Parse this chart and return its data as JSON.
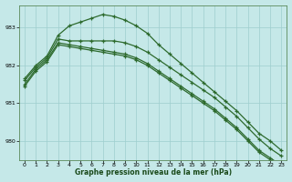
{
  "xlabel": "Graphe pression niveau de la mer (hPa)",
  "background_color": "#c5e8e8",
  "grid_color": "#9ecece",
  "line_color": "#2d6a2d",
  "ylim": [
    979.5,
    983.6
  ],
  "yticks": [
    980,
    981,
    982,
    983
  ],
  "xlim": [
    -0.5,
    23.5
  ],
  "xticks": [
    0,
    1,
    2,
    3,
    4,
    5,
    6,
    7,
    8,
    9,
    10,
    11,
    12,
    13,
    14,
    15,
    16,
    17,
    18,
    19,
    20,
    21,
    22,
    23
  ],
  "series": [
    [
      981.65,
      982.0,
      982.25,
      982.8,
      983.05,
      983.15,
      983.25,
      983.35,
      983.3,
      983.2,
      983.05,
      982.85,
      982.55,
      982.3,
      982.05,
      981.8,
      981.55,
      981.3,
      981.05,
      980.8,
      980.5,
      980.2,
      980.0,
      979.75
    ],
    [
      981.6,
      981.95,
      982.2,
      982.7,
      982.65,
      982.65,
      982.65,
      982.65,
      982.65,
      982.6,
      982.5,
      982.35,
      982.15,
      981.95,
      981.75,
      981.55,
      981.35,
      981.15,
      980.9,
      980.65,
      980.35,
      980.05,
      979.8,
      979.6
    ],
    [
      981.5,
      981.9,
      982.15,
      982.6,
      982.55,
      982.5,
      982.45,
      982.4,
      982.35,
      982.3,
      982.2,
      982.05,
      981.85,
      981.65,
      981.45,
      981.25,
      981.05,
      980.85,
      980.6,
      980.35,
      980.05,
      979.75,
      979.55,
      979.35
    ],
    [
      981.45,
      981.85,
      982.1,
      982.55,
      982.5,
      982.45,
      982.4,
      982.35,
      982.3,
      982.25,
      982.15,
      982.0,
      981.8,
      981.6,
      981.4,
      981.2,
      981.0,
      980.8,
      980.55,
      980.3,
      980.0,
      979.7,
      979.5,
      979.3
    ]
  ]
}
